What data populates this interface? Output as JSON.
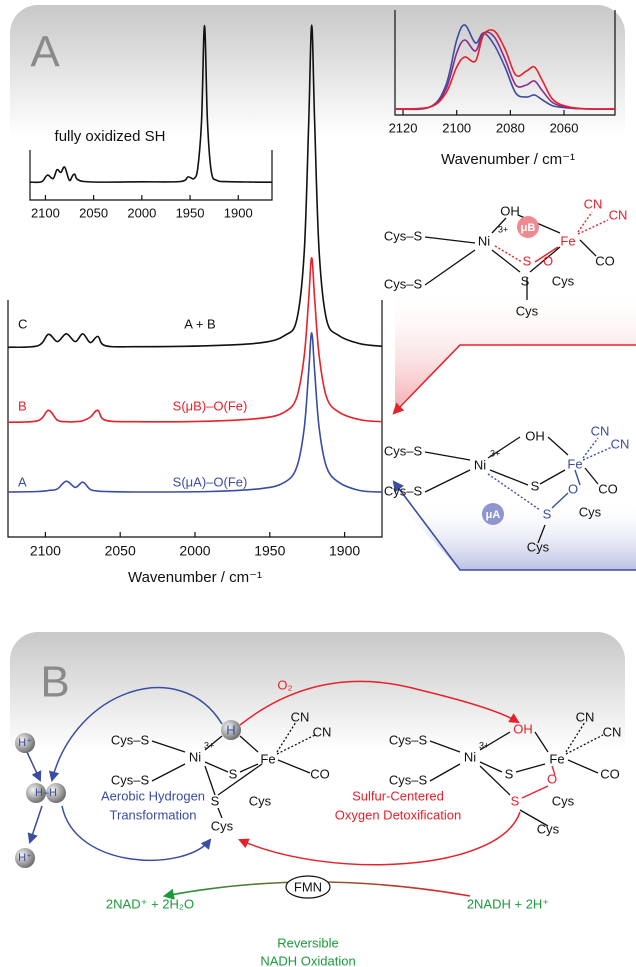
{
  "chart_data": [
    {
      "type": "line",
      "x_label": "Wavenumber / cm⁻¹",
      "x": [
        2125,
        2105,
        2098,
        2092,
        2086,
        2080,
        2075,
        2070,
        2065,
        2060,
        2040,
        1990,
        1955,
        1940,
        1932,
        1927,
        1924,
        1922,
        1920,
        1917,
        1912,
        1904,
        1890,
        1875
      ],
      "xlim": [
        2125,
        1875
      ],
      "xticks": [
        2100,
        2050,
        2000,
        1950,
        1900
      ],
      "ylim": [
        0,
        100
      ],
      "series": [
        {
          "name": "C",
          "label": "A + B",
          "color": "#111111",
          "values": [
            36.7,
            37,
            39.2,
            37.8,
            39.3,
            37.8,
            39.3,
            37.6,
            38.8,
            37,
            36.8,
            37,
            37.6,
            39,
            42,
            55,
            80,
            99,
            80,
            55,
            42,
            39,
            37.4,
            36.9
          ]
        },
        {
          "name": "B",
          "label": "S(μB)–O(Fe)",
          "color": "#e8202a",
          "values": [
            22.2,
            22.5,
            24.5,
            22.6,
            22.3,
            22.3,
            22.5,
            23.2,
            24.5,
            22.6,
            22.3,
            22.4,
            23,
            24.2,
            27,
            35,
            46,
            54,
            46,
            35,
            27,
            24.2,
            22.7,
            22.3
          ]
        },
        {
          "name": "A",
          "label": "S(μA)–O(Fe)",
          "color": "#3a4da0",
          "values": [
            8.7,
            8.8,
            9,
            9.3,
            10.8,
            9.6,
            10.6,
            9.2,
            8.9,
            8.8,
            8.7,
            8.8,
            9.4,
            10.6,
            13.5,
            21,
            32,
            39.5,
            32,
            21,
            13.5,
            10.6,
            9,
            8.7
          ]
        }
      ]
    },
    {
      "type": "line",
      "title": "fully oxidized SH",
      "x": [
        2116,
        2104,
        2098,
        2092,
        2088,
        2084,
        2080,
        2075,
        2070,
        2060,
        2000,
        1960,
        1952,
        1946,
        1942,
        1938,
        1935,
        1932,
        1928,
        1922,
        1910,
        1890,
        1875,
        1865
      ],
      "xlim": [
        2116,
        1865
      ],
      "xticks": [
        2100,
        2050,
        2000,
        1950,
        1900
      ],
      "ylim": [
        0,
        100
      ],
      "series": [
        {
          "color": "#111111",
          "values": [
            10,
            10.3,
            14,
            12,
            17,
            15.5,
            18.5,
            11,
            14.5,
            10.4,
            10.2,
            10.4,
            13,
            12,
            18,
            45,
            98,
            45,
            16,
            11,
            10.3,
            10.1,
            10,
            10
          ]
        }
      ]
    },
    {
      "type": "line",
      "x_label": "Wavenumber / cm⁻¹",
      "x": [
        2123,
        2110,
        2104,
        2100,
        2097,
        2093,
        2090,
        2086,
        2082,
        2078,
        2074,
        2071,
        2068,
        2064,
        2058,
        2050,
        2041
      ],
      "xlim": [
        2123,
        2041
      ],
      "xticks": [
        2120,
        2100,
        2080,
        2060
      ],
      "ylim": [
        0,
        100
      ],
      "series": [
        {
          "color": "#3a4da0",
          "values": [
            6,
            8,
            30,
            75,
            90,
            72,
            82,
            70,
            48,
            22,
            18,
            20,
            15,
            9,
            7,
            6,
            6
          ]
        },
        {
          "color": "#8b2a8a",
          "values": [
            6,
            8,
            26,
            62,
            75,
            64,
            82,
            78,
            56,
            30,
            30,
            34,
            24,
            12,
            7,
            6,
            6
          ]
        },
        {
          "color": "#e8202a",
          "values": [
            6,
            8,
            22,
            48,
            58,
            54,
            80,
            84,
            66,
            40,
            44,
            48,
            34,
            15,
            8,
            6,
            6
          ]
        }
      ]
    }
  ],
  "diagram": {
    "panel_labels": [
      "A",
      "B"
    ],
    "structure_1": [
      "Cys–S",
      "Ni",
      "3+",
      "OH",
      "Fe",
      "CN",
      "CN",
      "CO",
      "Cys–S",
      "μB",
      "S",
      "O",
      "S",
      "Cys",
      "Cys"
    ],
    "structure_2": [
      "Cys–S",
      "Ni",
      "3+",
      "OH",
      "Fe",
      "CN",
      "CN",
      "CO",
      "Cys–S",
      "S",
      "O",
      "S",
      "Cys",
      "μA",
      "Cys"
    ],
    "structure_3": [
      "Cys–S",
      "Ni",
      "3+",
      "H",
      "Fe",
      "CN",
      "CN",
      "CO",
      "Cys–S",
      "S",
      "S",
      "Cys",
      "Cys"
    ],
    "structure_4": [
      "Cys–S",
      "Ni",
      "3+",
      "OH",
      "Fe",
      "CN",
      "CN",
      "CO",
      "Cys–S",
      "S",
      "O",
      "S",
      "Cys",
      "Cys"
    ],
    "protons": [
      "H⁺",
      "H–H",
      "H⁺"
    ],
    "oxygen": "O₂",
    "cycle_left": [
      "Aerobic Hydrogen",
      "Transformation"
    ],
    "cycle_right": [
      "Sulfur-Centered",
      "Oxygen Detoxification"
    ],
    "fmn": "FMN",
    "nad_left": "2NAD⁺ + 2H₂O",
    "nad_right": "2NADH + 2H⁺",
    "nadh": [
      "Reversible",
      "NADH Oxidation"
    ]
  }
}
